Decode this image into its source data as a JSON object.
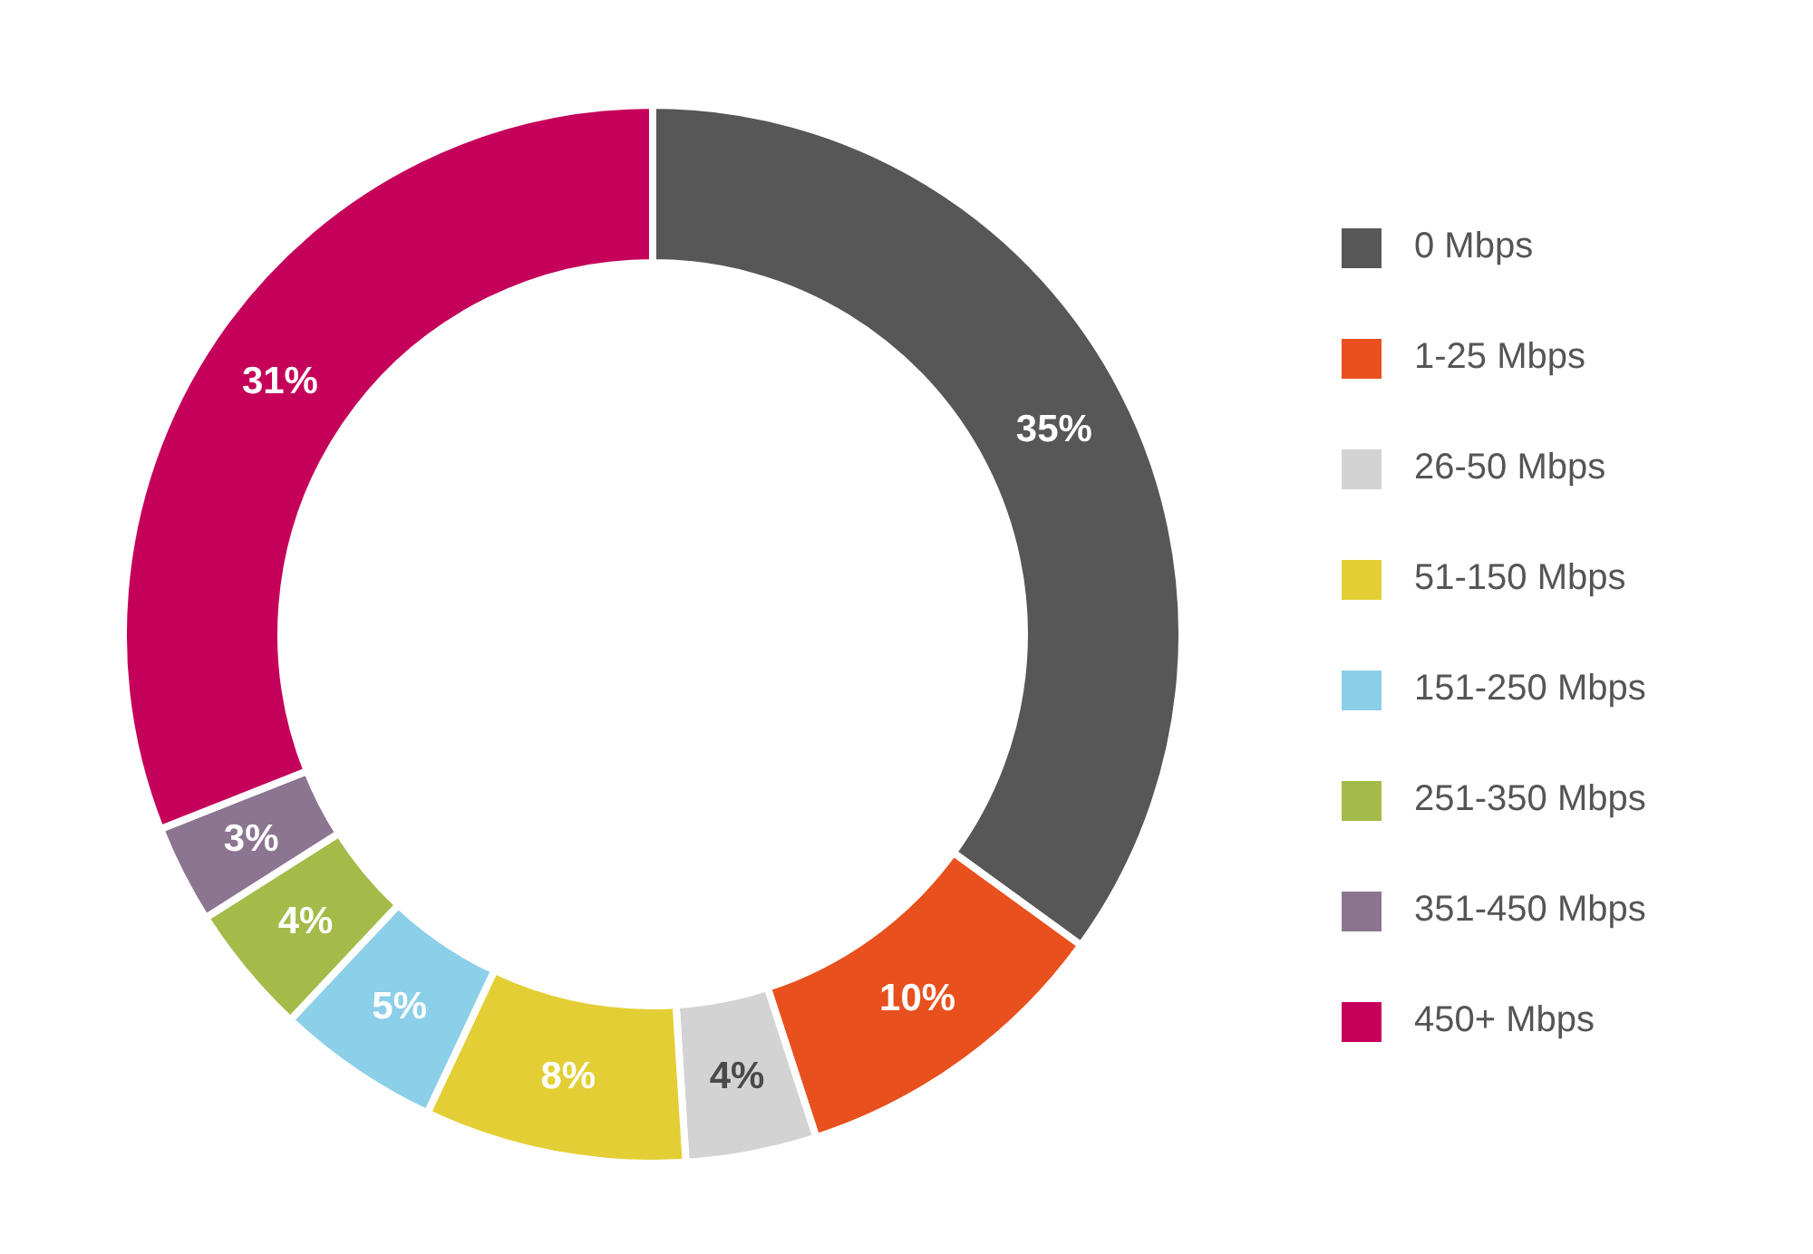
{
  "chart_data": {
    "type": "donut",
    "categories": [
      "0 Mbps",
      "1-25 Mbps",
      "26-50 Mbps",
      "51-150 Mbps",
      "151-250 Mbps",
      "251-350 Mbps",
      "351-450 Mbps",
      "450+ Mbps"
    ],
    "values": [
      35,
      10,
      4,
      8,
      5,
      4,
      3,
      31
    ],
    "colors": [
      "#575757",
      "#e8501e",
      "#d3d3d3",
      "#e3cf35",
      "#8ccfe8",
      "#a4bb4a",
      "#8c7591",
      "#c5005a"
    ],
    "value_labels": [
      "35%",
      "10%",
      "4%",
      "8%",
      "5%",
      "4%",
      "3%",
      "31%"
    ],
    "legend": "right"
  }
}
